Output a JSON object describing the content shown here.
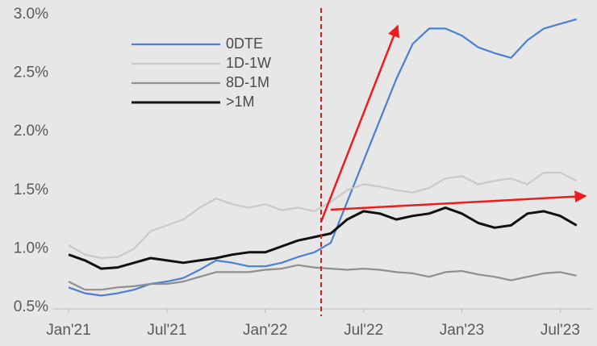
{
  "chart_data": {
    "type": "line",
    "x": [
      0,
      1,
      2,
      3,
      4,
      5,
      6,
      7,
      8,
      9,
      10,
      11,
      12,
      13,
      14,
      15,
      16,
      17,
      18,
      19,
      20,
      21,
      22,
      23,
      24,
      25,
      26,
      27,
      28,
      29,
      30,
      31
    ],
    "xlim": [
      0,
      32
    ],
    "xticks": [
      {
        "value": 0,
        "label": "Jan'21"
      },
      {
        "value": 6,
        "label": "Jul'21"
      },
      {
        "value": 12,
        "label": "Jan'22"
      },
      {
        "value": 18,
        "label": "Jul'22"
      },
      {
        "value": 24,
        "label": "Jan'23"
      },
      {
        "value": 30,
        "label": "Jul'23"
      }
    ],
    "ylim": [
      0.5,
      3.0
    ],
    "yticks": [
      {
        "value": 0.5,
        "label": "0.5%"
      },
      {
        "value": 1.0,
        "label": "1.0%"
      },
      {
        "value": 1.5,
        "label": "1.5%"
      },
      {
        "value": 2.0,
        "label": "2.0%"
      },
      {
        "value": 2.5,
        "label": "2.5%"
      },
      {
        "value": 3.0,
        "label": "3.0%"
      }
    ],
    "grid": false,
    "legend": "upper-left",
    "series": [
      {
        "name": "0DTE",
        "color": "#4a7fd4",
        "values": [
          0.67,
          0.62,
          0.6,
          0.62,
          0.65,
          0.7,
          0.72,
          0.75,
          0.82,
          0.9,
          0.88,
          0.85,
          0.85,
          0.88,
          0.93,
          0.97,
          1.05,
          1.4,
          1.75,
          2.1,
          2.45,
          2.75,
          2.88,
          2.88,
          2.82,
          2.72,
          2.67,
          2.63,
          2.78,
          2.88,
          2.92,
          2.96
        ]
      },
      {
        "name": "1D-1W",
        "color": "#c9c9c9",
        "values": [
          1.03,
          0.95,
          0.92,
          0.93,
          1.0,
          1.15,
          1.2,
          1.25,
          1.35,
          1.43,
          1.38,
          1.35,
          1.38,
          1.33,
          1.35,
          1.32,
          1.4,
          1.5,
          1.55,
          1.53,
          1.5,
          1.48,
          1.52,
          1.6,
          1.62,
          1.55,
          1.58,
          1.6,
          1.55,
          1.65,
          1.65,
          1.58
        ]
      },
      {
        "name": "8D-1M",
        "color": "#8f8f8f",
        "values": [
          0.72,
          0.65,
          0.65,
          0.67,
          0.68,
          0.7,
          0.7,
          0.72,
          0.76,
          0.8,
          0.8,
          0.8,
          0.82,
          0.83,
          0.86,
          0.84,
          0.83,
          0.82,
          0.83,
          0.82,
          0.8,
          0.79,
          0.76,
          0.8,
          0.81,
          0.78,
          0.76,
          0.73,
          0.76,
          0.79,
          0.8,
          0.77
        ]
      },
      {
        "name": ">1M",
        "color": "#111111",
        "values": [
          0.95,
          0.9,
          0.83,
          0.84,
          0.88,
          0.92,
          0.9,
          0.88,
          0.9,
          0.92,
          0.95,
          0.97,
          0.97,
          1.02,
          1.07,
          1.1,
          1.13,
          1.25,
          1.32,
          1.3,
          1.25,
          1.28,
          1.3,
          1.35,
          1.3,
          1.22,
          1.18,
          1.2,
          1.3,
          1.32,
          1.28,
          1.2
        ]
      }
    ]
  }
}
